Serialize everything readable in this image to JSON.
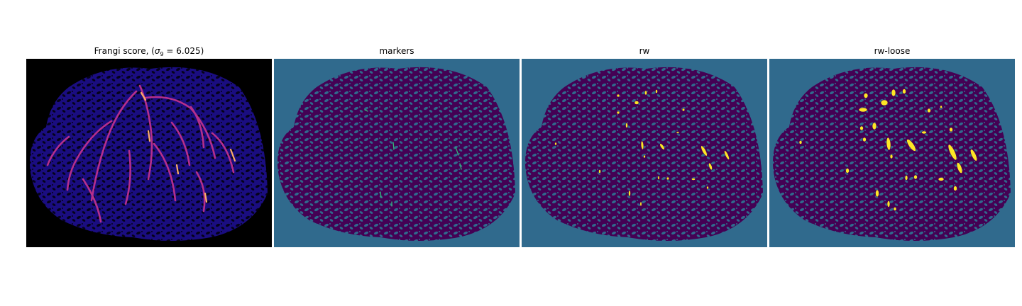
{
  "figure": {
    "panels": [
      {
        "title_prefix": "Frangi score, (",
        "title_sigma": "σ",
        "title_subscript": "9",
        "title_suffix": " = 6.025)",
        "background": "#000000",
        "colormap": "magma"
      },
      {
        "title": "markers",
        "background": "#306a8d"
      },
      {
        "title": "rw",
        "background": "#306a8d"
      },
      {
        "title": "rw-loose",
        "background": "#306a8d"
      }
    ]
  },
  "chart_data": [
    {
      "type": "heatmap",
      "title": "Frangi score, (σ9 = 6.025)",
      "colormap": "magma",
      "sigma": 6.025
    },
    {
      "type": "heatmap",
      "title": "markers",
      "palette": [
        "#440154",
        "#306a8d",
        "#35b779"
      ]
    },
    {
      "type": "heatmap",
      "title": "rw",
      "palette": [
        "#440154",
        "#306a8d",
        "#fde725"
      ]
    },
    {
      "type": "heatmap",
      "title": "rw-loose",
      "palette": [
        "#440154",
        "#306a8d",
        "#fde725"
      ]
    }
  ],
  "colors": {
    "tissue": "#440154",
    "background_teal": "#306a8d",
    "vessel_yellow": "#fde725",
    "vessel_green": "#35b779",
    "frangi_bg": "#000000",
    "frangi_low": "#1a0d80",
    "frangi_mid": "#b52f8c",
    "frangi_high": "#fcae66"
  }
}
